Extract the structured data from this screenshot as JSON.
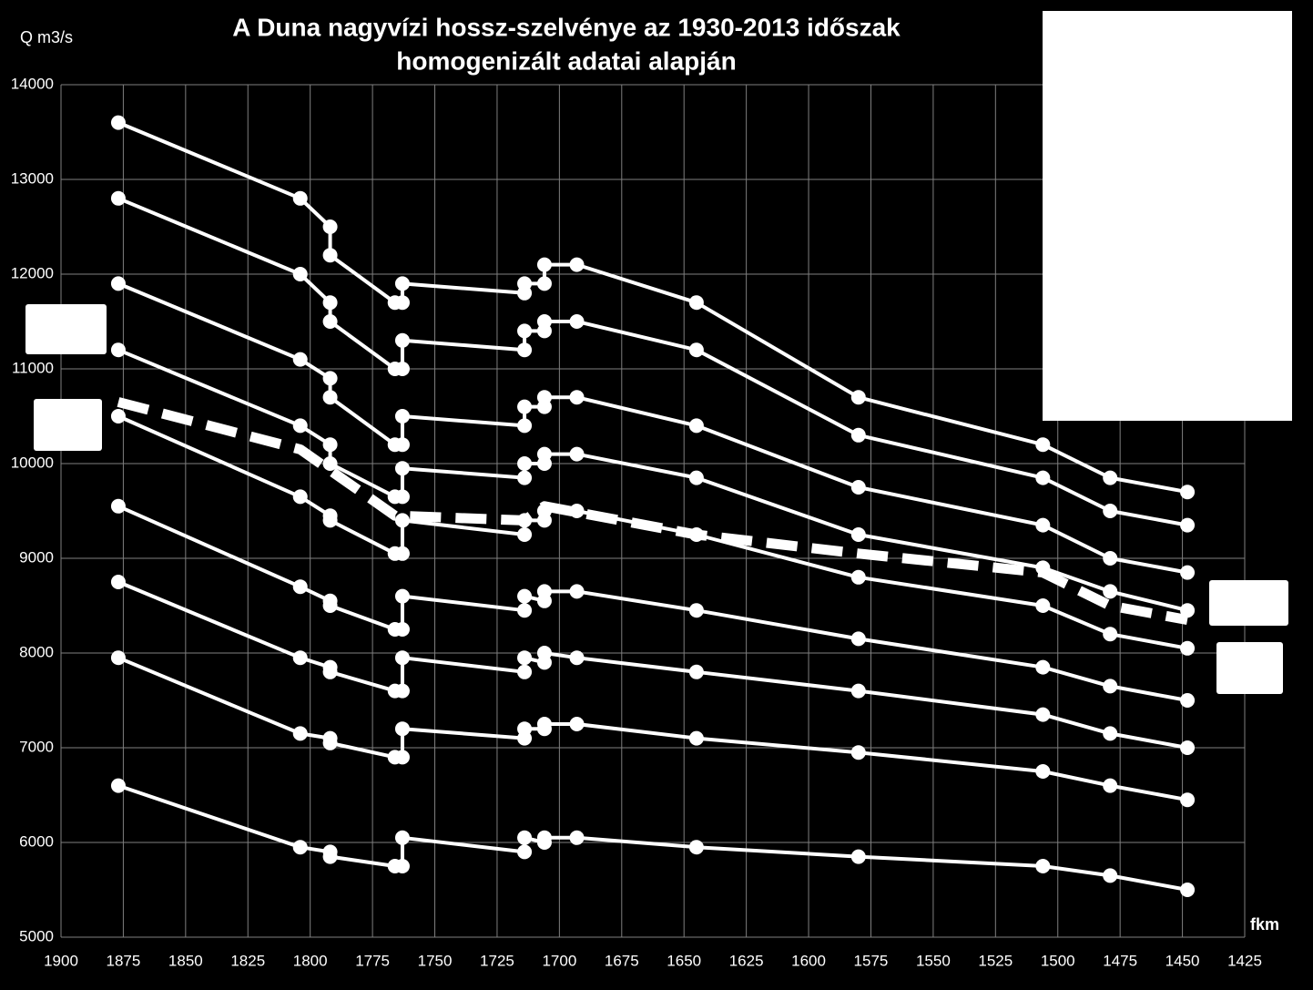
{
  "chart_data": {
    "type": "line",
    "title": [
      "A Duna nagyvízi hossz-szelvénye az 1930-2013 időszak",
      "homogenizált adatai alapján"
    ],
    "ylabel": "Q m3/s",
    "xlabel": "fkm",
    "xlim": [
      1900,
      1425
    ],
    "xticks": [
      1900,
      1875,
      1850,
      1825,
      1800,
      1775,
      1750,
      1725,
      1700,
      1675,
      1650,
      1625,
      1600,
      1575,
      1550,
      1525,
      1500,
      1475,
      1450,
      1425
    ],
    "ylim": [
      5000,
      14000
    ],
    "yticks": [
      5000,
      6000,
      7000,
      8000,
      9000,
      10000,
      11000,
      12000,
      13000,
      14000
    ],
    "grid": true,
    "series": [
      {
        "color": "#ffffff",
        "x": [
          1877,
          1804,
          1792,
          1792,
          1766,
          1763,
          1763,
          1714,
          1714,
          1706,
          1706,
          1693,
          1645,
          1580,
          1506,
          1479,
          1448
        ],
        "values": [
          13600,
          12800,
          12500,
          12200,
          11700,
          11700,
          11900,
          11800,
          11900,
          11900,
          12100,
          12100,
          11700,
          10700,
          10200,
          9850,
          9700
        ]
      },
      {
        "color": "#ffffff",
        "x": [
          1877,
          1804,
          1792,
          1792,
          1766,
          1763,
          1763,
          1714,
          1714,
          1706,
          1706,
          1693,
          1645,
          1580,
          1506,
          1479,
          1448
        ],
        "values": [
          12800,
          12000,
          11700,
          11500,
          11000,
          11000,
          11300,
          11200,
          11400,
          11400,
          11500,
          11500,
          11200,
          10300,
          9850,
          9500,
          9350
        ]
      },
      {
        "color": "#ffffff",
        "x": [
          1877,
          1804,
          1792,
          1792,
          1766,
          1763,
          1763,
          1714,
          1714,
          1706,
          1706,
          1693,
          1645,
          1580,
          1506,
          1479,
          1448
        ],
        "values": [
          11900,
          11100,
          10900,
          10700,
          10200,
          10200,
          10500,
          10400,
          10600,
          10600,
          10700,
          10700,
          10400,
          9750,
          9350,
          9000,
          8850
        ]
      },
      {
        "color": "#ffffff",
        "x": [
          1877,
          1804,
          1792,
          1792,
          1766,
          1763,
          1763,
          1714,
          1714,
          1706,
          1706,
          1693,
          1645,
          1580,
          1506,
          1479,
          1448
        ],
        "values": [
          11200,
          10400,
          10200,
          10000,
          9650,
          9650,
          9950,
          9850,
          10000,
          10000,
          10100,
          10100,
          9850,
          9250,
          8900,
          8650,
          8450
        ]
      },
      {
        "color": "#ffffff",
        "x": [
          1877,
          1804,
          1792,
          1792,
          1766,
          1763,
          1763,
          1714,
          1714,
          1706,
          1706,
          1693,
          1645,
          1580,
          1506,
          1479,
          1448
        ],
        "values": [
          10500,
          9650,
          9450,
          9400,
          9050,
          9050,
          9400,
          9250,
          9400,
          9400,
          9500,
          9500,
          9250,
          8800,
          8500,
          8200,
          8050
        ]
      },
      {
        "color": "#ffffff",
        "dashed": true,
        "x": [
          1877,
          1804,
          1766,
          1714,
          1706,
          1645,
          1580,
          1506,
          1479,
          1448
        ],
        "values": [
          10650,
          10150,
          9450,
          9400,
          9550,
          9250,
          9050,
          8850,
          8500,
          8350
        ]
      },
      {
        "color": "#ffffff",
        "x": [
          1877,
          1804,
          1792,
          1792,
          1766,
          1763,
          1763,
          1714,
          1714,
          1706,
          1706,
          1693,
          1645,
          1580,
          1506,
          1479,
          1448
        ],
        "values": [
          9550,
          8700,
          8550,
          8500,
          8250,
          8250,
          8600,
          8450,
          8600,
          8550,
          8650,
          8650,
          8450,
          8150,
          7850,
          7650,
          7500
        ]
      },
      {
        "color": "#ffffff",
        "x": [
          1877,
          1804,
          1792,
          1792,
          1766,
          1763,
          1763,
          1714,
          1714,
          1706,
          1706,
          1693,
          1645,
          1580,
          1506,
          1479,
          1448
        ],
        "values": [
          8750,
          7950,
          7850,
          7800,
          7600,
          7600,
          7950,
          7800,
          7950,
          7900,
          8000,
          7950,
          7800,
          7600,
          7350,
          7150,
          7000
        ]
      },
      {
        "color": "#ffffff",
        "x": [
          1877,
          1804,
          1792,
          1792,
          1766,
          1763,
          1763,
          1714,
          1714,
          1706,
          1706,
          1693,
          1645,
          1580,
          1506,
          1479,
          1448
        ],
        "values": [
          7950,
          7150,
          7100,
          7050,
          6900,
          6900,
          7200,
          7100,
          7200,
          7200,
          7250,
          7250,
          7100,
          6950,
          6750,
          6600,
          6450
        ]
      },
      {
        "color": "#ffffff",
        "x": [
          1877,
          1804,
          1792,
          1792,
          1766,
          1763,
          1763,
          1714,
          1714,
          1706,
          1706,
          1693,
          1645,
          1580,
          1506,
          1479,
          1448
        ],
        "values": [
          6600,
          5950,
          5900,
          5850,
          5750,
          5750,
          6050,
          5900,
          6050,
          6000,
          6050,
          6050,
          5950,
          5850,
          5750,
          5650,
          5500
        ]
      }
    ]
  }
}
